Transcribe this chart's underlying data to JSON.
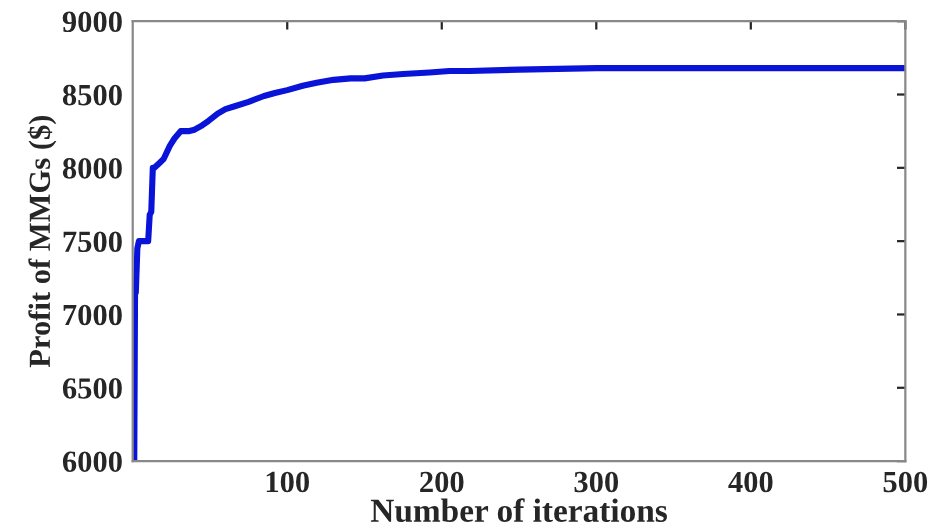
{
  "chart_data": {
    "type": "line",
    "xlabel": "Number of iterations",
    "ylabel": "Profit of MMGs ($)",
    "xlim": [
      0,
      500
    ],
    "xticks": [
      100,
      200,
      300,
      400,
      500
    ],
    "ylim": [
      6000,
      9000
    ],
    "yticks": [
      6000,
      6500,
      7000,
      7500,
      8000,
      8500,
      9000
    ],
    "grid": false,
    "series": [
      {
        "color": "#0a14d8",
        "x": [
          1,
          1.5,
          2,
          3,
          4,
          5,
          8,
          10,
          11,
          12,
          13,
          14,
          17,
          20,
          24,
          27,
          31,
          36,
          40,
          45,
          49,
          55,
          60,
          66,
          75,
          85,
          92,
          100,
          110,
          119,
          130,
          141,
          150,
          162,
          175,
          192,
          205,
          218,
          250,
          300,
          400,
          500
        ],
        "values": [
          6000,
          7150,
          7150,
          7450,
          7500,
          7500,
          7500,
          7500,
          7680,
          7700,
          8000,
          8000,
          8030,
          8060,
          8150,
          8200,
          8250,
          8250,
          8260,
          8290,
          8320,
          8370,
          8400,
          8420,
          8450,
          8490,
          8510,
          8530,
          8560,
          8580,
          8600,
          8610,
          8610,
          8630,
          8640,
          8650,
          8660,
          8660,
          8670,
          8680,
          8680,
          8680
        ]
      }
    ]
  }
}
